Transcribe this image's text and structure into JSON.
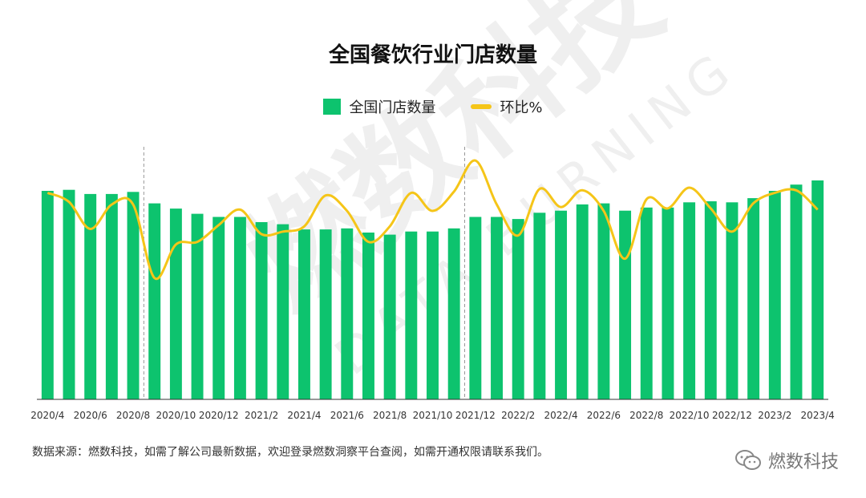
{
  "watermark": {
    "text": "燃数科技",
    "subtext": "DATA BURNING"
  },
  "brand": {
    "icon": "wechat-icon",
    "name": "燃数科技"
  },
  "source_note": "数据来源：燃数科技，如需了解公司最新数据，欢迎登录燃数洞察平台查阅，如需开通权限请联系我们。",
  "colors": {
    "bar": "#0DC36E",
    "line": "#F5C518",
    "axis": "#333333",
    "divider": "#999999"
  },
  "chart_data": {
    "type": "bar",
    "title": "全国餐饮行业门店数量",
    "legend": [
      {
        "name": "全国门店数量",
        "kind": "bar"
      },
      {
        "name": "环比%",
        "kind": "line"
      }
    ],
    "legend_position": "top-center",
    "grid": false,
    "categories": [
      "2020/4",
      "2020/5",
      "2020/6",
      "2020/7",
      "2020/8",
      "2020/9",
      "2020/10",
      "2020/11",
      "2020/12",
      "2021/1",
      "2021/2",
      "2021/3",
      "2021/4",
      "2021/5",
      "2021/6",
      "2021/7",
      "2021/8",
      "2021/9",
      "2021/10",
      "2021/11",
      "2021/12",
      "2022/1",
      "2022/2",
      "2022/3",
      "2022/4",
      "2022/5",
      "2022/6",
      "2022/7",
      "2022/8",
      "2022/9",
      "2022/10",
      "2022/11",
      "2022/12",
      "2023/1",
      "2023/2",
      "2023/3",
      "2023/4"
    ],
    "tick_labels": [
      "2020/4",
      "2020/6",
      "2020/8",
      "2020/10",
      "2020/12",
      "2021/2",
      "2021/4",
      "2021/6",
      "2021/8",
      "2021/10",
      "2021/12",
      "2022/2",
      "2022/4",
      "2022/6",
      "2022/8",
      "2022/10",
      "2022/12",
      "2023/2",
      "2023/4"
    ],
    "series": [
      {
        "name": "全国门店数量",
        "type": "bar",
        "values": [
          200,
          201,
          197,
          197,
          199,
          188,
          183,
          178,
          175,
          175,
          170,
          168,
          163,
          163,
          164,
          160,
          158,
          161,
          161,
          164,
          175,
          175,
          173,
          179,
          181,
          187,
          188,
          181,
          184,
          184,
          189,
          190,
          189,
          193,
          200,
          206,
          210
        ]
      },
      {
        "name": "环比%",
        "type": "line",
        "values": [
          2.0,
          1.3,
          -0.8,
          1.1,
          1.1,
          -4.6,
          -2.0,
          -1.8,
          -0.5,
          0.7,
          -1.2,
          -1.0,
          -0.6,
          1.8,
          0.6,
          -1.8,
          -0.6,
          2.0,
          0.6,
          2.1,
          4.5,
          1.1,
          -1.3,
          2.3,
          0.9,
          2.2,
          0.6,
          -3.1,
          1.5,
          0.8,
          2.4,
          0.8,
          -1.0,
          1.2,
          2.0,
          2.2,
          0.7
        ]
      }
    ],
    "vertical_dividers_after": [
      "2020/8",
      "2021/11"
    ],
    "ylim_bar": [
      0,
      260
    ],
    "ylim_line": [
      -14,
      7
    ]
  }
}
